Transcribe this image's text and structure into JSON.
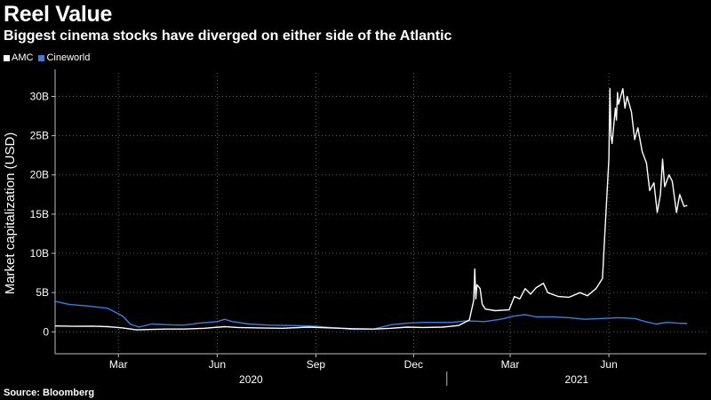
{
  "title": "Reel Value",
  "subtitle": "Biggest cinema stocks have diverged on either side of the Atlantic",
  "source": "Source: Bloomberg",
  "legend": [
    {
      "name": "AMC",
      "color": "#ffffff"
    },
    {
      "name": "Cineworld",
      "color": "#3b7de0"
    }
  ],
  "chart_data": {
    "type": "line",
    "ylabel": "Market capitalization (USD)",
    "yticks": [
      {
        "value": 0,
        "label": "0"
      },
      {
        "value": 5,
        "label": "5B"
      },
      {
        "value": 10,
        "label": "10B"
      },
      {
        "value": 15,
        "label": "15B"
      },
      {
        "value": 20,
        "label": "20B"
      },
      {
        "value": 25,
        "label": "25B"
      },
      {
        "value": 30,
        "label": "30B"
      }
    ],
    "ylim": [
      -2.8,
      33
    ],
    "xlim": [
      "2020-01-02",
      "2021-08-31"
    ],
    "month_ticks": [
      {
        "date": "2020-03-01",
        "label": "Mar"
      },
      {
        "date": "2020-06-01",
        "label": "Jun"
      },
      {
        "date": "2020-09-01",
        "label": "Sep"
      },
      {
        "date": "2020-12-01",
        "label": "Dec"
      },
      {
        "date": "2021-03-01",
        "label": "Mar"
      },
      {
        "date": "2021-06-01",
        "label": "Jun"
      }
    ],
    "year_labels": [
      {
        "label": "2020",
        "from": "2020-01-02",
        "to": "2021-01-01"
      },
      {
        "label": "2021",
        "from": "2021-01-01",
        "to": "2021-08-31"
      }
    ],
    "grid": true,
    "legend_position": "top-left",
    "series": [
      {
        "name": "AMC",
        "color": "#ffffff",
        "points": [
          [
            "2020-01-02",
            0.75
          ],
          [
            "2020-01-20",
            0.7
          ],
          [
            "2020-02-05",
            0.72
          ],
          [
            "2020-02-20",
            0.65
          ],
          [
            "2020-03-05",
            0.5
          ],
          [
            "2020-03-18",
            0.25
          ],
          [
            "2020-04-01",
            0.3
          ],
          [
            "2020-04-15",
            0.35
          ],
          [
            "2020-05-01",
            0.35
          ],
          [
            "2020-05-20",
            0.45
          ],
          [
            "2020-06-08",
            0.65
          ],
          [
            "2020-06-20",
            0.55
          ],
          [
            "2020-07-10",
            0.5
          ],
          [
            "2020-08-01",
            0.45
          ],
          [
            "2020-08-25",
            0.6
          ],
          [
            "2020-09-15",
            0.5
          ],
          [
            "2020-10-05",
            0.4
          ],
          [
            "2020-10-25",
            0.35
          ],
          [
            "2020-11-10",
            0.45
          ],
          [
            "2020-11-25",
            0.6
          ],
          [
            "2020-12-10",
            0.55
          ],
          [
            "2020-12-28",
            0.6
          ],
          [
            "2021-01-12",
            0.8
          ],
          [
            "2021-01-22",
            1.5
          ],
          [
            "2021-01-26",
            4.0
          ],
          [
            "2021-01-27",
            8.0
          ],
          [
            "2021-01-28",
            4.2
          ],
          [
            "2021-01-29",
            6.0
          ],
          [
            "2021-02-01",
            5.5
          ],
          [
            "2021-02-03",
            3.5
          ],
          [
            "2021-02-06",
            2.9
          ],
          [
            "2021-02-15",
            2.7
          ],
          [
            "2021-02-28",
            2.8
          ],
          [
            "2021-03-05",
            4.5
          ],
          [
            "2021-03-10",
            4.2
          ],
          [
            "2021-03-15",
            5.5
          ],
          [
            "2021-03-20",
            4.8
          ],
          [
            "2021-03-25",
            5.6
          ],
          [
            "2021-04-01",
            6.2
          ],
          [
            "2021-04-05",
            5.0
          ],
          [
            "2021-04-15",
            4.5
          ],
          [
            "2021-04-25",
            4.4
          ],
          [
            "2021-05-05",
            5.0
          ],
          [
            "2021-05-12",
            4.6
          ],
          [
            "2021-05-20",
            5.5
          ],
          [
            "2021-05-26",
            6.8
          ],
          [
            "2021-05-28",
            12.0
          ],
          [
            "2021-06-01",
            22.0
          ],
          [
            "2021-06-02",
            31.0
          ],
          [
            "2021-06-03",
            25.0
          ],
          [
            "2021-06-04",
            24.0
          ],
          [
            "2021-06-07",
            28.5
          ],
          [
            "2021-06-08",
            27.0
          ],
          [
            "2021-06-09",
            30.5
          ],
          [
            "2021-06-10",
            29.0
          ],
          [
            "2021-06-14",
            31.0
          ],
          [
            "2021-06-16",
            28.5
          ],
          [
            "2021-06-18",
            30.0
          ],
          [
            "2021-06-22",
            28.0
          ],
          [
            "2021-06-25",
            24.5
          ],
          [
            "2021-06-28",
            26.0
          ],
          [
            "2021-07-02",
            23.0
          ],
          [
            "2021-07-06",
            21.5
          ],
          [
            "2021-07-09",
            18.0
          ],
          [
            "2021-07-13",
            19.0
          ],
          [
            "2021-07-16",
            15.2
          ],
          [
            "2021-07-19",
            17.5
          ],
          [
            "2021-07-21",
            22.0
          ],
          [
            "2021-07-23",
            18.5
          ],
          [
            "2021-07-27",
            20.0
          ],
          [
            "2021-07-30",
            19.2
          ],
          [
            "2021-08-03",
            15.2
          ],
          [
            "2021-08-06",
            17.5
          ],
          [
            "2021-08-10",
            16.0
          ],
          [
            "2021-08-13",
            16.1
          ]
        ]
      },
      {
        "name": "Cineworld",
        "color": "#3b7de0",
        "points": [
          [
            "2020-01-02",
            3.9
          ],
          [
            "2020-01-15",
            3.5
          ],
          [
            "2020-02-01",
            3.3
          ],
          [
            "2020-02-20",
            3.0
          ],
          [
            "2020-03-05",
            2.0
          ],
          [
            "2020-03-12",
            1.0
          ],
          [
            "2020-03-20",
            0.6
          ],
          [
            "2020-04-01",
            1.0
          ],
          [
            "2020-04-15",
            0.9
          ],
          [
            "2020-05-01",
            0.85
          ],
          [
            "2020-05-15",
            1.1
          ],
          [
            "2020-06-01",
            1.3
          ],
          [
            "2020-06-08",
            1.6
          ],
          [
            "2020-06-15",
            1.3
          ],
          [
            "2020-07-01",
            1.0
          ],
          [
            "2020-07-20",
            0.85
          ],
          [
            "2020-08-10",
            0.8
          ],
          [
            "2020-09-01",
            0.7
          ],
          [
            "2020-09-20",
            0.5
          ],
          [
            "2020-10-06",
            0.3
          ],
          [
            "2020-10-25",
            0.35
          ],
          [
            "2020-11-10",
            0.9
          ],
          [
            "2020-11-25",
            1.1
          ],
          [
            "2020-12-10",
            1.2
          ],
          [
            "2021-01-05",
            1.2
          ],
          [
            "2021-01-20",
            1.4
          ],
          [
            "2021-02-05",
            1.3
          ],
          [
            "2021-02-20",
            1.6
          ],
          [
            "2021-03-05",
            2.0
          ],
          [
            "2021-03-15",
            2.2
          ],
          [
            "2021-03-25",
            1.9
          ],
          [
            "2021-04-10",
            1.9
          ],
          [
            "2021-04-25",
            1.8
          ],
          [
            "2021-05-10",
            1.6
          ],
          [
            "2021-05-25",
            1.7
          ],
          [
            "2021-06-10",
            1.8
          ],
          [
            "2021-06-25",
            1.7
          ],
          [
            "2021-07-05",
            1.3
          ],
          [
            "2021-07-15",
            1.0
          ],
          [
            "2021-07-25",
            1.2
          ],
          [
            "2021-08-05",
            1.1
          ],
          [
            "2021-08-13",
            1.05
          ]
        ]
      }
    ]
  }
}
